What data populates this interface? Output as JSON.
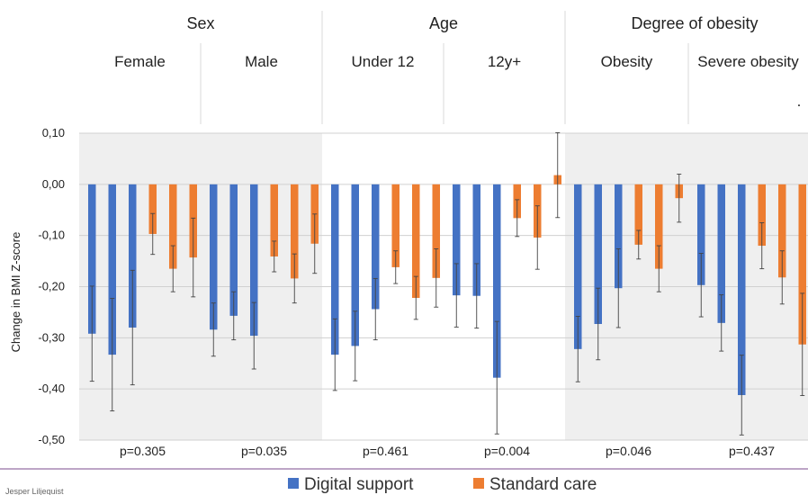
{
  "chart_data": {
    "type": "bar",
    "ylabel": "Change in BMI Z-score",
    "ylim": [
      -0.5,
      0.1
    ],
    "yticks": [
      "0,10",
      "0,00",
      "-0,10",
      "-0,20",
      "-0,30",
      "-0,40",
      "-0,50"
    ],
    "ytick_values": [
      0.1,
      0.0,
      -0.1,
      -0.2,
      -0.3,
      -0.4,
      -0.5
    ],
    "grid": true,
    "legend_position": "bottom",
    "series_meta": [
      {
        "name": "Digital support",
        "color": "#4472C4"
      },
      {
        "name": "Standard care",
        "color": "#ED7D31"
      }
    ],
    "groups": [
      {
        "name": "Sex",
        "shaded": true,
        "subgroups": [
          {
            "label": "Female",
            "p": "p=0.305",
            "digital": [
              {
                "v": -0.292,
                "e": 0.093
              },
              {
                "v": -0.333,
                "e": 0.11
              },
              {
                "v": -0.28,
                "e": 0.112
              }
            ],
            "standard": [
              {
                "v": -0.097,
                "e": 0.04
              },
              {
                "v": -0.165,
                "e": 0.045
              },
              {
                "v": -0.143,
                "e": 0.077
              }
            ]
          },
          {
            "label": "Male",
            "p": "p=0.035",
            "digital": [
              {
                "v": -0.284,
                "e": 0.052
              },
              {
                "v": -0.257,
                "e": 0.047
              },
              {
                "v": -0.296,
                "e": 0.065
              }
            ],
            "standard": [
              {
                "v": -0.141,
                "e": 0.03
              },
              {
                "v": -0.184,
                "e": 0.048
              },
              {
                "v": -0.116,
                "e": 0.058
              }
            ]
          }
        ]
      },
      {
        "name": "Age",
        "shaded": false,
        "subgroups": [
          {
            "label": "Under 12",
            "p": "p=0.461",
            "digital": [
              {
                "v": -0.333,
                "e": 0.07
              },
              {
                "v": -0.316,
                "e": 0.068
              },
              {
                "v": -0.244,
                "e": 0.06
              }
            ],
            "standard": [
              {
                "v": -0.162,
                "e": 0.032
              },
              {
                "v": -0.222,
                "e": 0.042
              },
              {
                "v": -0.183,
                "e": 0.057
              }
            ]
          },
          {
            "label": "12y+",
            "p": "p=0.004",
            "digital": [
              {
                "v": -0.217,
                "e": 0.062
              },
              {
                "v": -0.218,
                "e": 0.063
              },
              {
                "v": -0.378,
                "e": 0.11
              }
            ],
            "standard": [
              {
                "v": -0.066,
                "e": 0.036
              },
              {
                "v": -0.104,
                "e": 0.062
              },
              {
                "v": 0.018,
                "e": 0.083
              }
            ]
          }
        ]
      },
      {
        "name": "Degree of obesity",
        "shaded": true,
        "subgroups": [
          {
            "label": "Obesity",
            "p": "p=0.046",
            "digital": [
              {
                "v": -0.322,
                "e": 0.064
              },
              {
                "v": -0.273,
                "e": 0.07
              },
              {
                "v": -0.203,
                "e": 0.077
              }
            ],
            "standard": [
              {
                "v": -0.118,
                "e": 0.028
              },
              {
                "v": -0.165,
                "e": 0.045
              },
              {
                "v": -0.027,
                "e": 0.047
              }
            ]
          },
          {
            "label": "Severe obesity",
            "p": "p=0.437",
            "digital": [
              {
                "v": -0.197,
                "e": 0.062
              },
              {
                "v": -0.271,
                "e": 0.055
              },
              {
                "v": -0.412,
                "e": 0.078
              }
            ],
            "standard": [
              {
                "v": -0.12,
                "e": 0.045
              },
              {
                "v": -0.182,
                "e": 0.052
              },
              {
                "v": -0.313,
                "e": 0.1
              }
            ]
          }
        ]
      }
    ],
    "legend": [
      {
        "label": "Digital support",
        "color": "#4472C4"
      },
      {
        "label": "Standard care",
        "color": "#ED7D31"
      }
    ],
    "annotation_dot": "."
  },
  "footer": {
    "author": "Jesper Liljequist"
  }
}
